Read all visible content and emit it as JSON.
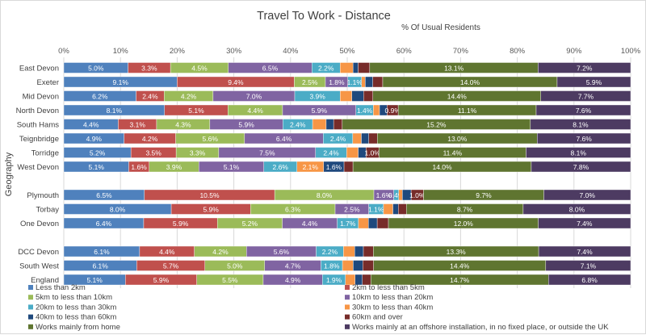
{
  "chart_data": {
    "type": "bar",
    "orientation": "horizontal",
    "stacking": "100% stacked",
    "title": "Travel To Work - Distance",
    "subtitle": "% Of Usual Residents",
    "xlabel": "",
    "ylabel": "Geography",
    "xlim": [
      0,
      100
    ],
    "x_ticks": [
      "0%",
      "10%",
      "20%",
      "30%",
      "40%",
      "50%",
      "60%",
      "70%",
      "80%",
      "90%",
      "100%"
    ],
    "grid": true,
    "legend_position": "bottom",
    "series": [
      {
        "name": "Less than 2km",
        "color": "#4f81bd"
      },
      {
        "name": "2km to less than 5km",
        "color": "#c0504d"
      },
      {
        "name": "5km to less than 10km",
        "color": "#9bbb59"
      },
      {
        "name": "10km to less than 20km",
        "color": "#8064a2"
      },
      {
        "name": "20km to less than 30km",
        "color": "#4bacc6"
      },
      {
        "name": "30km to less than 40km",
        "color": "#f79646"
      },
      {
        "name": "40km to less than 60km",
        "color": "#1f497d"
      },
      {
        "name": "60km and over",
        "color": "#772c2a"
      },
      {
        "name": "Works mainly from home",
        "color": "#5f7530"
      },
      {
        "name": "Works mainly at an offshore installation, in no fixed place, or outside the UK",
        "color": "#4d3b62"
      }
    ],
    "groups": [
      [
        {
          "category": "East Devon",
          "values": [
            5.0,
            3.3,
            4.5,
            6.5,
            2.2,
            1.0,
            0.4,
            0.9,
            13.1,
            7.2
          ],
          "unlabeled": [
            5,
            6,
            7
          ]
        },
        {
          "category": "Exeter",
          "values": [
            9.1,
            9.4,
            2.5,
            1.8,
            1.1,
            0.3,
            0.6,
            0.8,
            14.0,
            5.9
          ],
          "unlabeled": [
            5,
            6,
            7
          ]
        },
        {
          "category": "Mid Devon",
          "values": [
            6.2,
            2.4,
            4.2,
            7.0,
            3.9,
            1.0,
            1.0,
            0.8,
            14.4,
            7.7
          ],
          "unlabeled": [
            5,
            6,
            7
          ]
        },
        {
          "category": "North Devon",
          "values": [
            8.1,
            5.1,
            4.4,
            5.9,
            1.4,
            0.5,
            0.6,
            0.9,
            11.1,
            7.6
          ],
          "unlabeled": [
            5,
            6
          ]
        },
        {
          "category": "South Hams",
          "values": [
            4.4,
            3.1,
            4.3,
            5.9,
            2.4,
            1.1,
            0.6,
            0.7,
            15.2,
            8.1
          ],
          "unlabeled": [
            5,
            6,
            7
          ]
        },
        {
          "category": "Teignbridge",
          "values": [
            4.9,
            4.2,
            5.6,
            6.4,
            2.4,
            0.7,
            0.6,
            0.7,
            13.0,
            7.6
          ],
          "unlabeled": [
            5,
            6,
            7
          ]
        },
        {
          "category": "Torridge",
          "values": [
            5.2,
            3.5,
            3.3,
            7.5,
            2.4,
            0.9,
            0.6,
            1.0,
            11.4,
            8.1
          ],
          "unlabeled": [
            5,
            6
          ]
        },
        {
          "category": "West Devon",
          "values": [
            5.1,
            1.6,
            3.9,
            5.1,
            2.6,
            2.1,
            1.6,
            0.7,
            14.0,
            7.8
          ],
          "unlabeled": [
            7
          ]
        }
      ],
      [
        {
          "category": "Plymouth",
          "values": [
            6.5,
            10.5,
            8.0,
            1.6,
            0.4,
            0.3,
            0.7,
            1.0,
            9.7,
            7.0
          ],
          "unlabeled": [
            5,
            6
          ]
        },
        {
          "category": "Torbay",
          "values": [
            8.0,
            5.9,
            6.3,
            2.5,
            1.1,
            0.7,
            0.4,
            0.6,
            8.7,
            8.0
          ],
          "unlabeled": [
            5,
            6,
            7
          ]
        },
        {
          "category": "One Devon",
          "values": [
            6.4,
            5.9,
            5.2,
            4.4,
            1.7,
            0.8,
            0.7,
            0.9,
            12.0,
            7.4
          ],
          "unlabeled": [
            5,
            6,
            7
          ]
        }
      ],
      [
        {
          "category": "DCC Devon",
          "values": [
            6.1,
            4.4,
            4.2,
            5.6,
            2.2,
            0.9,
            0.7,
            0.8,
            13.3,
            7.4
          ],
          "unlabeled": [
            5,
            6,
            7
          ]
        },
        {
          "category": "South West",
          "values": [
            6.1,
            5.7,
            5.0,
            4.7,
            1.8,
            0.9,
            0.8,
            0.9,
            14.4,
            7.1
          ],
          "unlabeled": [
            5,
            6,
            7
          ]
        },
        {
          "category": "England",
          "values": [
            5.1,
            5.9,
            5.5,
            4.9,
            1.9,
            0.8,
            0.6,
            0.7,
            14.7,
            6.8
          ],
          "unlabeled": [
            5,
            6,
            7
          ]
        }
      ]
    ]
  }
}
